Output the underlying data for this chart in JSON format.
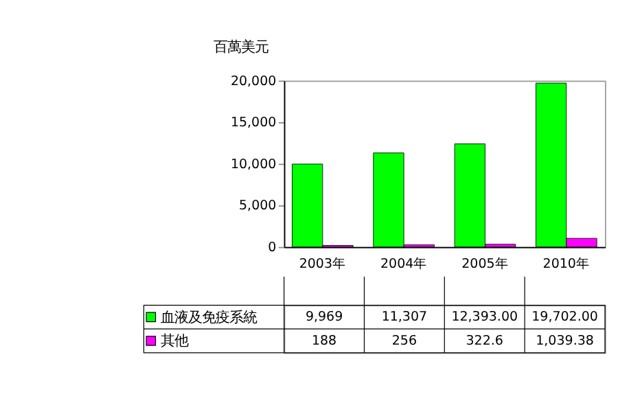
{
  "chart_data": {
    "type": "bar",
    "ylabel": "百萬美元",
    "categories": [
      "2003年",
      "2004年",
      "2005年",
      "2010年"
    ],
    "series": [
      {
        "name": "血液及免疫系統",
        "color": "#00ff00",
        "values": [
          9969,
          11307,
          12393.0,
          19702.0
        ],
        "value_labels": [
          "9,969",
          "11,307",
          "12,393.00",
          "19,702.00"
        ]
      },
      {
        "name": "其他",
        "color": "#ff00ff",
        "values": [
          188,
          256,
          322.6,
          1039.38
        ],
        "value_labels": [
          "188",
          "256",
          "322.6",
          "1,039.38"
        ]
      }
    ],
    "ylim": [
      0,
      20000
    ],
    "yticks": [
      0,
      {
        "value": 5000,
        "label": "5,000"
      },
      {
        "value": 10000,
        "label": "10,000"
      },
      {
        "value": 15000,
        "label": "15,000"
      },
      {
        "value": 20000,
        "label": "20,000"
      }
    ],
    "grid": false,
    "legend": "bottom"
  }
}
